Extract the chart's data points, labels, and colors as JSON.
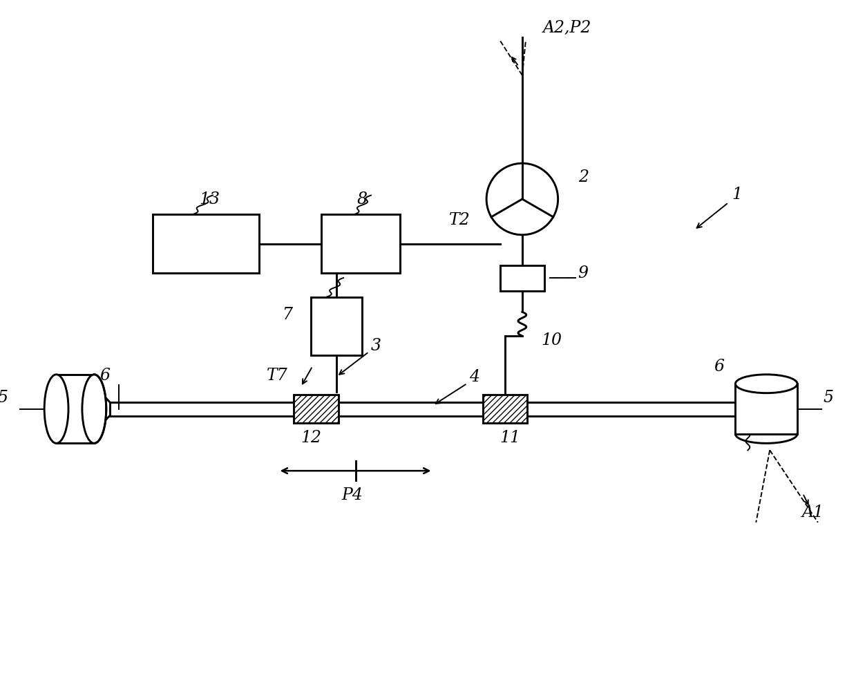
{
  "bg_color": "#ffffff",
  "line_color": "#000000",
  "fig_width": 12.39,
  "fig_height": 10.07,
  "lw": 1.4,
  "label_fs": 17,
  "labels": {
    "A2P2": "A2,P2",
    "label1": "1",
    "label2": "2",
    "label3": "3",
    "label4": "4",
    "label5L": "5",
    "label5R": "5",
    "label6L": "6",
    "label6R": "6",
    "label7": "7",
    "label8": "8",
    "label9": "9",
    "label10": "10",
    "label11": "11",
    "label12": "12",
    "label13": "13",
    "T2": "T2",
    "T7": "T7",
    "P4": "P4",
    "A1": "A1"
  }
}
